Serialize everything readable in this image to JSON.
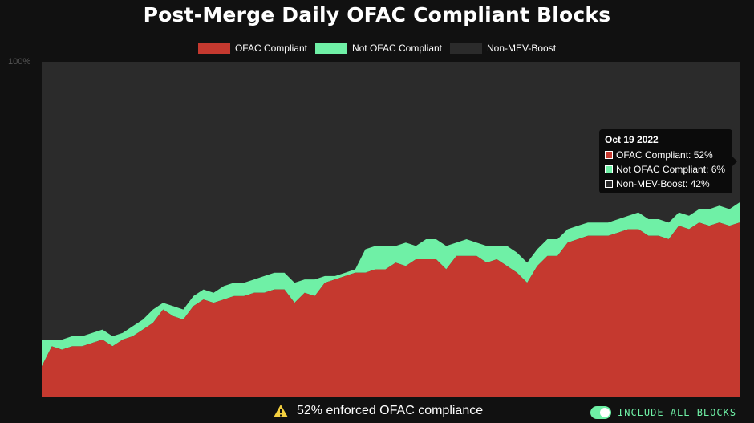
{
  "header": {
    "title": "Post-Merge Daily OFAC Compliant Blocks"
  },
  "colors": {
    "ofac": "#c5392f",
    "not_ofac": "#6ff0a6",
    "non_mev": "#2b2b2b",
    "background": "#111111"
  },
  "chart_data": {
    "type": "area",
    "stacked": true,
    "title": "Post-Merge Daily OFAC Compliant Blocks",
    "ylim": [
      0,
      100
    ],
    "y_ticks": [
      "100%"
    ],
    "legend_position": "top-center",
    "grid": false,
    "series": [
      {
        "name": "OFAC Compliant",
        "values": [
          9,
          15,
          14,
          15,
          15,
          16,
          17,
          15,
          17,
          18,
          20,
          22,
          26,
          24,
          23,
          27,
          29,
          28,
          29,
          30,
          30,
          31,
          31,
          32,
          32,
          28,
          31,
          30,
          34,
          35,
          36,
          37,
          37,
          38,
          38,
          40,
          39,
          41,
          41,
          41,
          38,
          42,
          42,
          42,
          40,
          41,
          39,
          37,
          34,
          39,
          42,
          42,
          46,
          47,
          48,
          48,
          48,
          49,
          50,
          50,
          48,
          48,
          47,
          51,
          50,
          52,
          51,
          52,
          51,
          52
        ]
      },
      {
        "name": "Not OFAC Compliant",
        "values": [
          8,
          2,
          3,
          3,
          3,
          3,
          3,
          3,
          2,
          3,
          3,
          4,
          2,
          3,
          3,
          3,
          3,
          3,
          4,
          4,
          4,
          4,
          5,
          5,
          5,
          6,
          4,
          5,
          2,
          1,
          1,
          1,
          7,
          7,
          7,
          5,
          7,
          4,
          6,
          6,
          7,
          4,
          5,
          4,
          5,
          4,
          6,
          6,
          6,
          5,
          5,
          5,
          4,
          4,
          4,
          4,
          4,
          4,
          4,
          5,
          5,
          5,
          5,
          4,
          4,
          4,
          5,
          5,
          5,
          6
        ]
      },
      {
        "name": "Non-MEV-Boost",
        "values": [
          83,
          83,
          83,
          82,
          82,
          81,
          80,
          82,
          81,
          79,
          77,
          74,
          72,
          73,
          74,
          70,
          68,
          69,
          67,
          66,
          66,
          65,
          64,
          63,
          63,
          66,
          65,
          65,
          64,
          64,
          63,
          62,
          56,
          55,
          55,
          55,
          54,
          55,
          53,
          53,
          55,
          54,
          53,
          54,
          55,
          55,
          55,
          57,
          60,
          56,
          53,
          53,
          50,
          49,
          48,
          48,
          48,
          47,
          46,
          45,
          47,
          47,
          48,
          45,
          46,
          44,
          44,
          43,
          44,
          42
        ]
      }
    ],
    "tooltip": {
      "date": "Oct 19 2022",
      "rows": [
        {
          "label": "OFAC Compliant: 52%",
          "color": "#c5392f"
        },
        {
          "label": "Not OFAC Compliant: 6%",
          "color": "#6ff0a6"
        },
        {
          "label": "Non-MEV-Boost: 42%",
          "color": "#2b2b2b"
        }
      ]
    }
  },
  "legend": [
    {
      "label": "OFAC Compliant",
      "color": "#c5392f"
    },
    {
      "label": "Not OFAC Compliant",
      "color": "#6ff0a6"
    },
    {
      "label": "Non-MEV-Boost",
      "color": "#2b2b2b"
    }
  ],
  "footer": {
    "summary": "52% enforced OFAC compliance",
    "icon": "warning-icon"
  },
  "toggle": {
    "label": "INCLUDE ALL BLOCKS",
    "checked": true
  }
}
